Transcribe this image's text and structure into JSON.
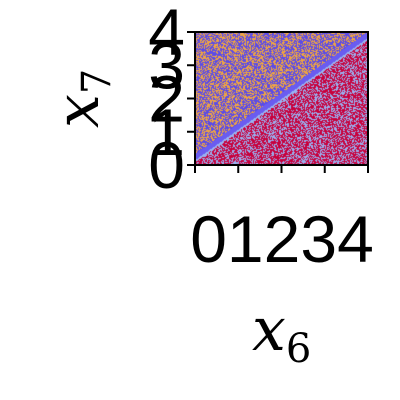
{
  "chart_data": {
    "type": "heatmap",
    "title": "",
    "xlabel": "x",
    "xlabel_sub": "6",
    "ylabel": "x",
    "ylabel_sub": "7",
    "xlim": [
      0,
      4
    ],
    "ylim": [
      0,
      4
    ],
    "x_ticks": [
      0,
      1,
      2,
      3,
      4
    ],
    "y_ticks": [
      0,
      1,
      2,
      3,
      4
    ],
    "x_tick_labels": [
      "0",
      "1",
      "2",
      "3",
      "4"
    ],
    "y_tick_labels": [
      "0",
      "1",
      "2",
      "3",
      "4"
    ],
    "grid": false,
    "legend": "none",
    "boundary_line": {
      "intercept": 0.2,
      "slope": 0.92,
      "band_halfwidth": 0.12
    },
    "regions": [
      {
        "label": "above boundary",
        "base_color": "#5b4be8",
        "speckle_color": "#f0a640",
        "speckle_fraction": 0.45
      },
      {
        "label": "below boundary",
        "base_color": "#c8003c",
        "speckle_color": "#9ab0f0",
        "speckle_fraction": 0.4
      }
    ],
    "boundary_band_color": "#6a5cf0",
    "boundary_band_edge_color": "#9ab4f0"
  }
}
